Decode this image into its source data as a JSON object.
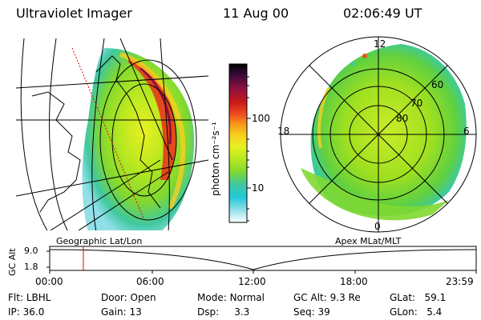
{
  "header": {
    "instrument": "Ultraviolet Imager",
    "date": "11 Aug 00",
    "time": "02:06:49 UT"
  },
  "colorbar": {
    "label": "photon cm⁻²s⁻¹",
    "ticks": [
      {
        "label": "100",
        "value": 100
      },
      {
        "label": "10",
        "value": 10
      }
    ],
    "colors": [
      "#000000",
      "#3a0a3a",
      "#8a1040",
      "#c81818",
      "#f05020",
      "#f89818",
      "#f8d020",
      "#e8f020",
      "#b8e820",
      "#80d830",
      "#40c8a0",
      "#20c8d8",
      "#90e0e8",
      "#ffffff"
    ]
  },
  "map_left": {
    "label": "Geographic Lat/Lon"
  },
  "map_right": {
    "label": "Apex MLat/MLT",
    "mlt_labels": [
      {
        "label": "12",
        "pos": "top"
      },
      {
        "label": "18",
        "pos": "left"
      },
      {
        "label": "6",
        "pos": "right"
      },
      {
        "label": "0",
        "pos": "bottom"
      }
    ],
    "lat_labels": [
      "60",
      "70",
      "80"
    ]
  },
  "timeline": {
    "ylabel": "GC Alt",
    "yticks": [
      "9.0",
      "1.8"
    ],
    "xticks": [
      "00:00",
      "06:00",
      "12:00",
      "18:00",
      "23:59"
    ],
    "marker_time": "02:06:49"
  },
  "params": {
    "flt": {
      "label": "Flt:",
      "value": "LBHL"
    },
    "door": {
      "label": "Door:",
      "value": "Open"
    },
    "mode": {
      "label": "Mode:",
      "value": "Normal"
    },
    "gcalt": {
      "label": "GC Alt:",
      "value": "9.3 Re"
    },
    "glat": {
      "label": "GLat:",
      "value": "59.1"
    },
    "ip": {
      "label": "IP:",
      "value": "36.0"
    },
    "gain": {
      "label": "Gain:",
      "value": "13"
    },
    "dsp": {
      "label": "Dsp:",
      "value": "3.3"
    },
    "seq": {
      "label": "Seq:",
      "value": "39"
    },
    "glon": {
      "label": "GLon:",
      "value": "5.4"
    }
  }
}
